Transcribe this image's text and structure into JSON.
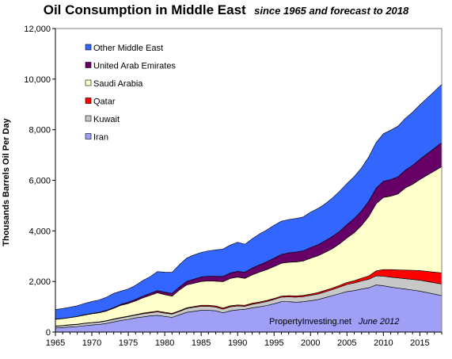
{
  "title": "Oil Consumption in Middle East",
  "subtitle": "since 1965 and forecast to 2018",
  "chart_data": {
    "type": "area",
    "stacked": true,
    "title": "Oil Consumption in Middle East",
    "subtitle": "since 1965 and forecast to 2018",
    "xlabel": "",
    "ylabel": "Thousands Barrels Oil Per Day",
    "xlim": [
      1965,
      2018
    ],
    "ylim": [
      0,
      12000
    ],
    "x_ticks": [
      1965,
      1970,
      1975,
      1980,
      1985,
      1990,
      1995,
      2000,
      2005,
      2010,
      2015
    ],
    "y_ticks": [
      0,
      2000,
      4000,
      6000,
      8000,
      10000,
      12000
    ],
    "y_tick_labels": [
      "0",
      "2,000",
      "4,000",
      "6,000",
      "8,000",
      "10,000",
      "12,000"
    ],
    "grid": false,
    "legend_position": "top-left",
    "x": [
      1965,
      1966,
      1967,
      1968,
      1969,
      1970,
      1971,
      1972,
      1973,
      1974,
      1975,
      1976,
      1977,
      1978,
      1979,
      1980,
      1981,
      1982,
      1983,
      1984,
      1985,
      1986,
      1987,
      1988,
      1989,
      1990,
      1991,
      1992,
      1993,
      1994,
      1995,
      1996,
      1997,
      1998,
      1999,
      2000,
      2001,
      2002,
      2003,
      2004,
      2005,
      2006,
      2007,
      2008,
      2009,
      2010,
      2011,
      2012,
      2013,
      2014,
      2015,
      2016,
      2017,
      2018
    ],
    "series": [
      {
        "name": "Iran",
        "color": "#9f9ff5",
        "values": [
          160,
          180,
          200,
          220,
          250,
          280,
          300,
          340,
          400,
          460,
          500,
          560,
          600,
          640,
          660,
          620,
          580,
          680,
          780,
          820,
          860,
          860,
          840,
          760,
          840,
          880,
          900,
          960,
          1000,
          1050,
          1120,
          1200,
          1200,
          1180,
          1200,
          1240,
          1280,
          1360,
          1440,
          1520,
          1600,
          1640,
          1700,
          1750,
          1860,
          1830,
          1780,
          1740,
          1700,
          1660,
          1620,
          1560,
          1500,
          1440
        ]
      },
      {
        "name": "Kuwait",
        "color": "#c8c8c8",
        "values": [
          70,
          70,
          80,
          80,
          90,
          90,
          90,
          100,
          100,
          100,
          110,
          110,
          120,
          120,
          140,
          130,
          130,
          130,
          150,
          160,
          160,
          160,
          150,
          150,
          160,
          150,
          120,
          140,
          150,
          160,
          170,
          180,
          190,
          200,
          200,
          210,
          220,
          230,
          240,
          260,
          280,
          300,
          320,
          340,
          360,
          380,
          390,
          400,
          410,
          420,
          430,
          440,
          450,
          460
        ]
      },
      {
        "name": "Qatar",
        "color": "#ff0000",
        "values": [
          10,
          10,
          10,
          10,
          10,
          10,
          10,
          10,
          20,
          20,
          20,
          20,
          30,
          30,
          30,
          30,
          30,
          30,
          30,
          30,
          40,
          40,
          40,
          40,
          40,
          40,
          40,
          40,
          40,
          40,
          40,
          40,
          50,
          50,
          50,
          50,
          60,
          60,
          60,
          70,
          80,
          90,
          110,
          130,
          200,
          260,
          300,
          320,
          340,
          360,
          380,
          400,
          420,
          440
        ]
      },
      {
        "name": "Saudi Arabia",
        "color": "#ffffcc",
        "values": [
          260,
          270,
          280,
          300,
          320,
          340,
          360,
          380,
          420,
          480,
          500,
          540,
          600,
          660,
          720,
          700,
          680,
          820,
          900,
          920,
          940,
          960,
          980,
          1040,
          1080,
          1100,
          1060,
          1120,
          1180,
          1220,
          1260,
          1300,
          1320,
          1340,
          1360,
          1420,
          1450,
          1500,
          1560,
          1640,
          1760,
          1900,
          2080,
          2350,
          2650,
          2850,
          2900,
          3000,
          3250,
          3400,
          3600,
          3800,
          4000,
          4200
        ]
      },
      {
        "name": "United Arab Emirates",
        "color": "#660066",
        "values": [
          10,
          10,
          10,
          10,
          20,
          20,
          20,
          30,
          30,
          40,
          50,
          60,
          70,
          80,
          90,
          100,
          110,
          120,
          140,
          160,
          180,
          190,
          200,
          210,
          220,
          230,
          250,
          270,
          290,
          310,
          330,
          350,
          370,
          390,
          400,
          420,
          440,
          460,
          480,
          500,
          530,
          560,
          580,
          610,
          620,
          640,
          660,
          680,
          700,
          750,
          800,
          850,
          900,
          950
        ]
      },
      {
        "name": "Other Middle East",
        "color": "#3366ff",
        "values": [
          380,
          390,
          400,
          420,
          440,
          470,
          490,
          520,
          560,
          520,
          520,
          560,
          620,
          660,
          750,
          790,
          830,
          880,
          920,
          960,
          970,
          1000,
          1040,
          1080,
          1100,
          1150,
          1100,
          1160,
          1220,
          1260,
          1300,
          1310,
          1320,
          1330,
          1340,
          1400,
          1430,
          1460,
          1520,
          1580,
          1620,
          1660,
          1700,
          1750,
          1800,
          1880,
          1950,
          2000,
          2050,
          2100,
          2150,
          2200,
          2250,
          2300
        ]
      }
    ],
    "annotation": "PropertyInvesting.net",
    "annotation_date": "June 2012"
  }
}
